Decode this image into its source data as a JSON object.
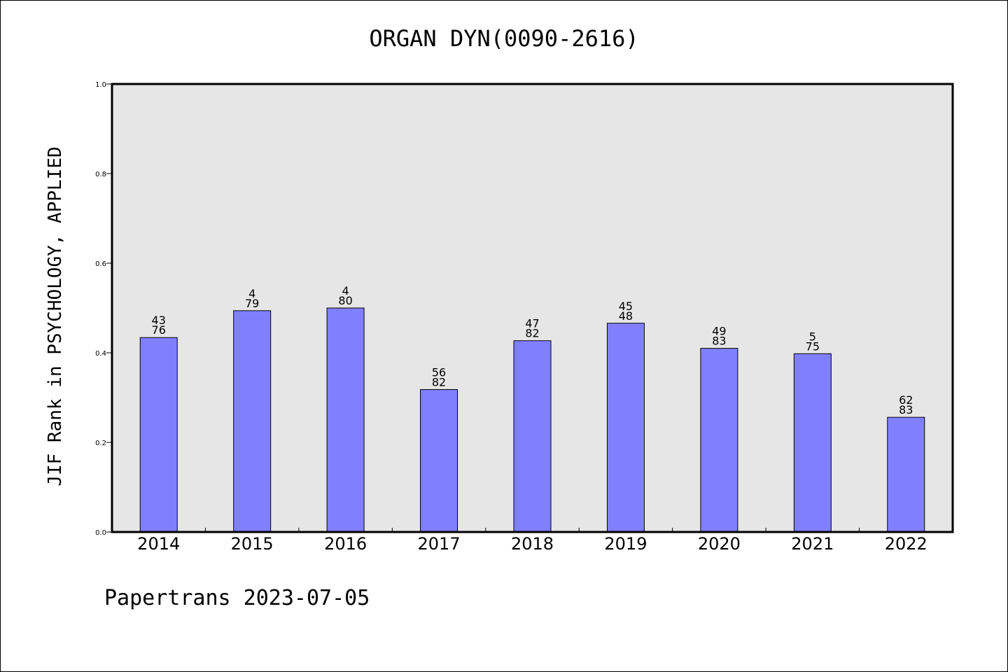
{
  "chart_data": {
    "type": "bar",
    "title": "ORGAN DYN(0090-2616)",
    "ylabel": "JIF Rank in PSYCHOLOGY, APPLIED",
    "xlabel": "",
    "ylim": [
      0,
      1.0
    ],
    "yticks": [
      "0.0",
      "0.2",
      "0.4",
      "0.6",
      "0.8",
      "1.0"
    ],
    "grid": false,
    "bar_color": "#8080ff",
    "plot_background": "#e6e6e6",
    "categories": [
      "2014",
      "2015",
      "2016",
      "2017",
      "2018",
      "2019",
      "2020",
      "2021",
      "2022"
    ],
    "values": [
      0.434,
      0.494,
      0.5,
      0.318,
      0.427,
      0.466,
      0.41,
      0.398,
      0.256
    ],
    "labels": [
      {
        "top": "43",
        "bottom": "76"
      },
      {
        "top": "4",
        "bottom": "79"
      },
      {
        "top": "4",
        "bottom": "80"
      },
      {
        "top": "56",
        "bottom": "82"
      },
      {
        "top": "47",
        "bottom": "82"
      },
      {
        "top": "45",
        "bottom": "48"
      },
      {
        "top": "49",
        "bottom": "83"
      },
      {
        "top": "5",
        "bottom": "75"
      },
      {
        "top": "62",
        "bottom": "83"
      }
    ]
  },
  "footer": "Papertrans 2023-07-05"
}
